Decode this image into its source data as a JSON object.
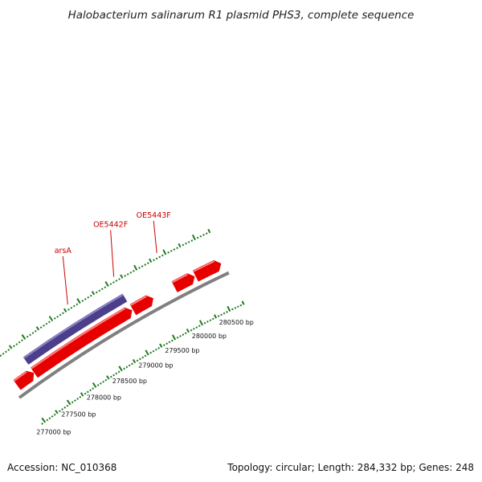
{
  "title": "Halobacterium salinarum R1 plasmid PHS3, complete sequence",
  "footer": {
    "accession": "Accession: NC_010368",
    "summary": "Topology: circular; Length: 284,332 bp; Genes: 248"
  },
  "colors": {
    "forward_gene": "#e60000",
    "forward_gene_highlight": "#ff8080",
    "reverse_gene": "#4b3f8c",
    "reverse_gene_highlight": "#8f86c8",
    "backbone": "#808080",
    "tick": "#1e7a1e",
    "gene_label": "#cc0000"
  },
  "chart_data": {
    "type": "genome-map",
    "topology": "circular",
    "scale_ticks_bp": [
      277000,
      277500,
      278000,
      278500,
      279000,
      279500,
      280000,
      280500
    ],
    "scale_tick_labels": [
      "277000 bp",
      "277500 bp",
      "278000 bp",
      "278500 bp",
      "279000 bp",
      "279500 bp",
      "280000 bp",
      "280500 bp"
    ],
    "forward_features": [
      {
        "start_bp": 276990,
        "end_bp": 277310
      },
      {
        "start_bp": 277320,
        "end_bp": 279130
      },
      {
        "start_bp": 279150,
        "end_bp": 279510
      },
      {
        "start_bp": 279890,
        "end_bp": 280240
      },
      {
        "start_bp": 280260,
        "end_bp": 280700
      }
    ],
    "reverse_features": [
      {
        "start_bp": 277320,
        "end_bp": 279130
      }
    ],
    "labels": [
      {
        "text": "arsA",
        "bp": 278330
      },
      {
        "text": "OE5442F",
        "bp": 279145
      },
      {
        "text": "OE5443F",
        "bp": 279890
      }
    ]
  }
}
